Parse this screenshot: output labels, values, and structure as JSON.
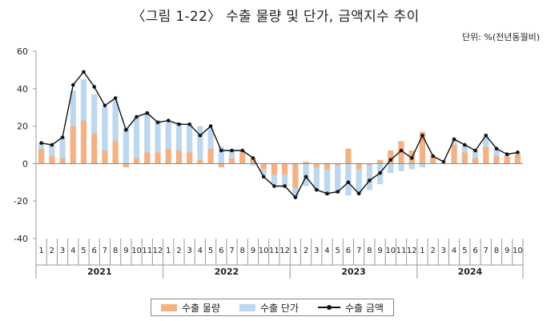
{
  "title": "〈그림 1-22〉 수출 물량 및 단가, 금액지수 추이",
  "unit": "단위: %(전년동월비)",
  "colors": {
    "volume": "#f4b183",
    "price": "#bdd7ee",
    "value": "#111111"
  },
  "chart_data": {
    "type": "bar",
    "title": "〈그림 1-22〉 수출 물량 및 단가, 금액지수 추이",
    "ylim": [
      -40,
      60
    ],
    "yticks": [
      -40,
      -20,
      0,
      20,
      40,
      60
    ],
    "ytick_labels": [
      "-40",
      "-20",
      "0",
      "20",
      "40",
      "60"
    ],
    "months": [
      "1",
      "2",
      "3",
      "4",
      "5",
      "6",
      "7",
      "8",
      "9",
      "10",
      "11",
      "12",
      "1",
      "2",
      "3",
      "4",
      "5",
      "6",
      "7",
      "8",
      "9",
      "10",
      "11",
      "12",
      "1",
      "2",
      "3",
      "4",
      "5",
      "6",
      "7",
      "8",
      "9",
      "10",
      "11",
      "12",
      "1",
      "2",
      "3",
      "4",
      "5",
      "6",
      "7",
      "8",
      "9",
      "10"
    ],
    "years": [
      {
        "label": "2021",
        "start": 0,
        "count": 12
      },
      {
        "label": "2022",
        "start": 12,
        "count": 12
      },
      {
        "label": "2023",
        "start": 24,
        "count": 12
      },
      {
        "label": "2024",
        "start": 36,
        "count": 10
      }
    ],
    "series": [
      {
        "name": "수출 물량",
        "kind": "stacked-bar",
        "values": [
          8,
          4,
          3,
          20,
          23,
          16,
          7,
          12,
          -2,
          3,
          6,
          6,
          8,
          7,
          6,
          2,
          8,
          -2,
          3,
          6,
          3,
          -3,
          -6,
          -6,
          -13,
          1,
          -2,
          -3,
          -1,
          8,
          -3,
          -1,
          2,
          7,
          12,
          7,
          17,
          4,
          0,
          10,
          6,
          3,
          9,
          4,
          4,
          5
        ]
      },
      {
        "name": "수출 단가",
        "kind": "stacked-bar",
        "values": [
          3,
          6,
          11,
          19,
          22,
          21,
          23,
          22,
          19,
          22,
          21,
          17,
          14,
          15,
          15,
          18,
          11,
          9,
          4,
          1,
          -1,
          -3,
          -5,
          -6,
          -5,
          -12,
          -12,
          -14,
          -15,
          -17,
          -13,
          -13,
          -11,
          -5,
          -4,
          -3,
          -2,
          0,
          0,
          3,
          4,
          4,
          5,
          4,
          1,
          1
        ]
      },
      {
        "name": "수출 금액",
        "kind": "line",
        "values": [
          11,
          10,
          14,
          42,
          49,
          41,
          31,
          35,
          18,
          25,
          27,
          22,
          23,
          21,
          21,
          15,
          20,
          7,
          7,
          7,
          3,
          -7,
          -12,
          -12,
          -18,
          -7,
          -14,
          -16,
          -15,
          -10,
          -16,
          -9,
          -5,
          2,
          7,
          3,
          15,
          4,
          1,
          13,
          10,
          7,
          15,
          8,
          5,
          6
        ]
      }
    ],
    "legend": [
      "수출 물량",
      "수출 단가",
      "수출 금액"
    ],
    "legend_position": "bottom-center"
  }
}
